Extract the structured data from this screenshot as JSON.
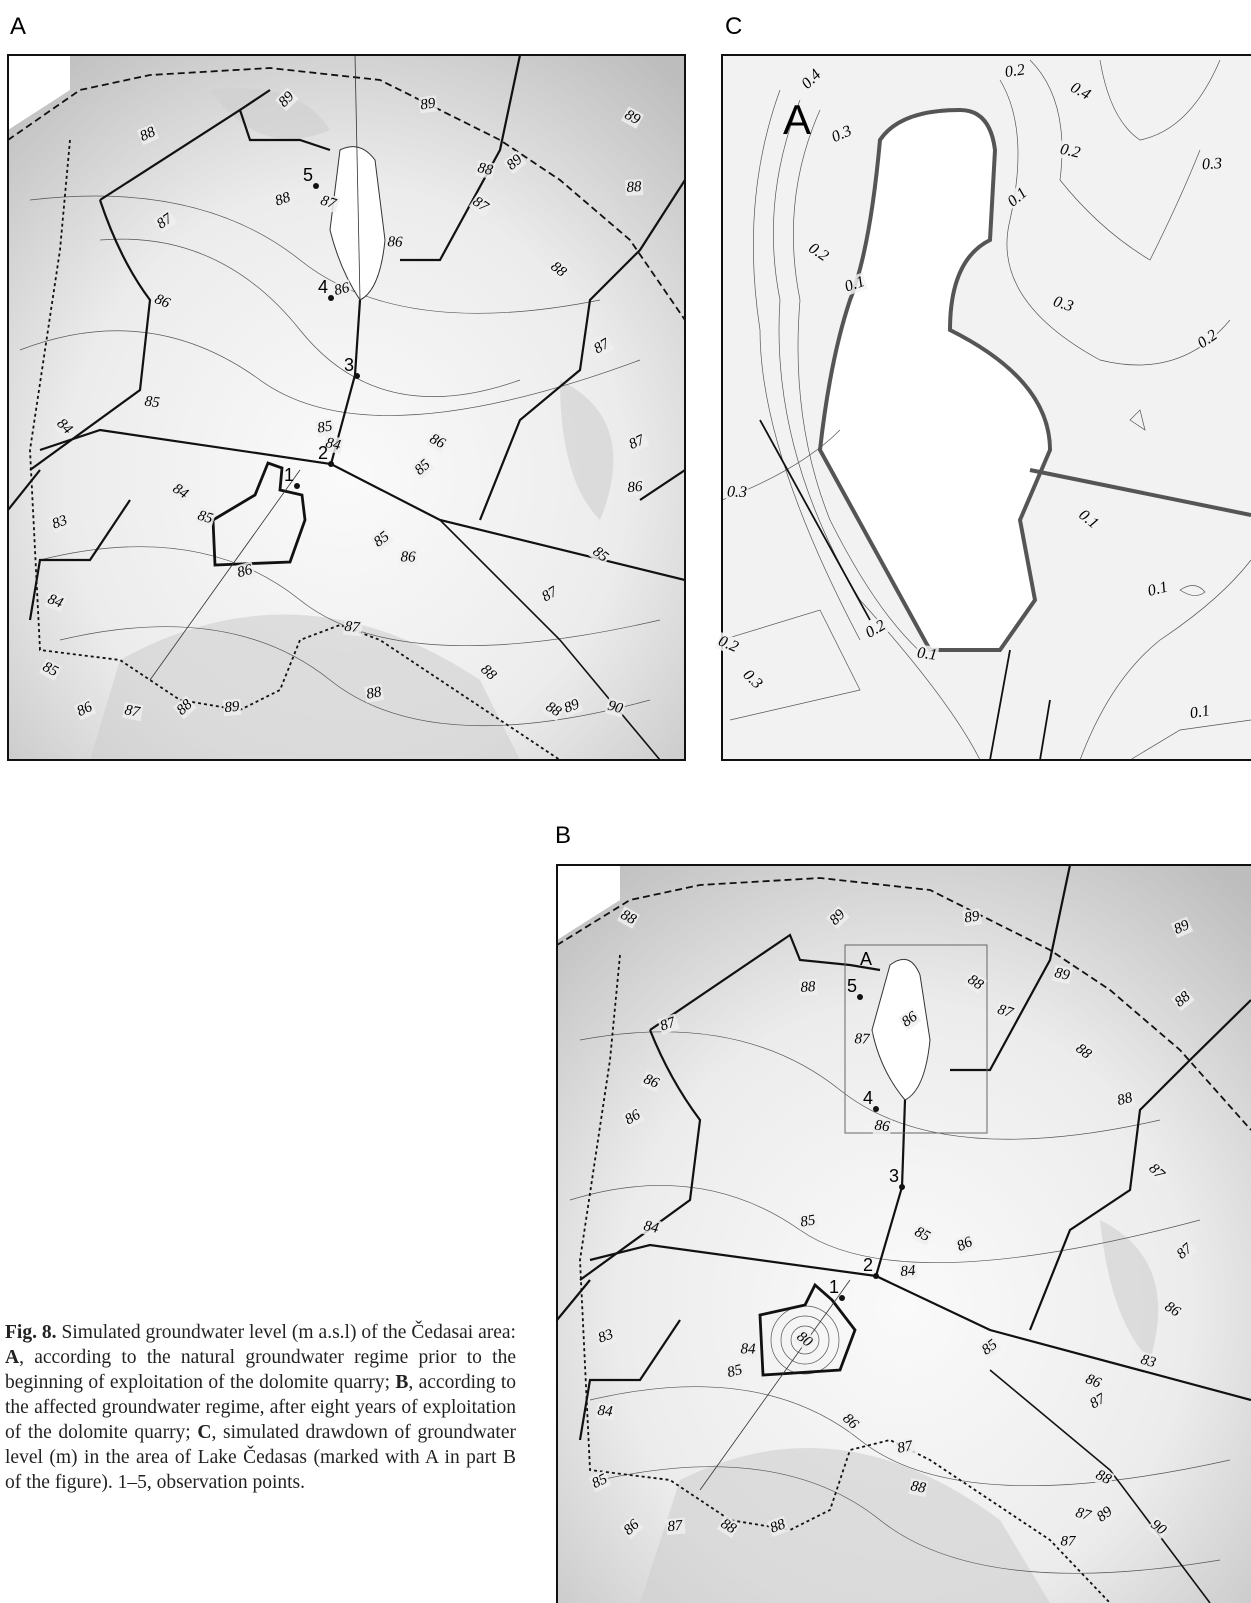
{
  "panels": [
    {
      "letter": "A",
      "contour_labels": [
        "89",
        "89",
        "89",
        "88",
        "88",
        "89",
        "88",
        "87",
        "88",
        "87",
        "87",
        "86",
        "88",
        "86",
        "86",
        "87",
        "85",
        "84",
        "85",
        "86",
        "87",
        "84",
        "85",
        "86",
        "84",
        "83",
        "85",
        "85",
        "86",
        "85",
        "86",
        "84",
        "87",
        "87",
        "88",
        "88",
        "85",
        "86",
        "87",
        "88",
        "89",
        "88",
        "89",
        "90"
      ],
      "observation_points": [
        "5",
        "4",
        "3",
        "2",
        "1"
      ]
    },
    {
      "letter": "C",
      "inset_label": "A",
      "contour_labels": [
        "0.4",
        "0.2",
        "0.4",
        "0.3",
        "0.2",
        "0.1",
        "0.3",
        "0.2",
        "0.1",
        "0.3",
        "0.2",
        "0.3",
        "0.1",
        "0.1",
        "0.2",
        "0.2",
        "0.1",
        "0.3",
        "0.1"
      ]
    },
    {
      "letter": "B",
      "inset_label": "A",
      "contour_labels": [
        "89",
        "89",
        "88",
        "89",
        "89",
        "88",
        "88",
        "88",
        "87",
        "87",
        "86",
        "87",
        "88",
        "88",
        "86",
        "86",
        "86",
        "87",
        "85",
        "85",
        "86",
        "84",
        "87",
        "84",
        "86",
        "83",
        "83",
        "85",
        "84",
        "80",
        "85",
        "86",
        "87",
        "84",
        "86",
        "87",
        "88",
        "85",
        "88",
        "86",
        "87",
        "88",
        "88",
        "87",
        "89",
        "87",
        "90"
      ],
      "observation_points": [
        "5",
        "4",
        "3",
        "2",
        "1"
      ]
    }
  ],
  "caption": [
    {
      "text": "Fig. 8.",
      "bold": true
    },
    {
      "text": " Simulated groundwater level (m a.s.l) of the Čedasai area: ",
      "bold": false
    },
    {
      "text": "A",
      "bold": true
    },
    {
      "text": ", according to the natural groundwater regime prior to the beginning of exploitation of the dolomite quarry; ",
      "bold": false
    },
    {
      "text": "B",
      "bold": true
    },
    {
      "text": ", according to the affected groundwater regime, after eight years of exploitation of the dolomite quarry; ",
      "bold": false
    },
    {
      "text": "C",
      "bold": true
    },
    {
      "text": ", simulated drawdown of groundwater level (m) in the area of Lake Čedasas (marked with A in part B of the figure). 1–5, observation points.",
      "bold": false
    }
  ]
}
